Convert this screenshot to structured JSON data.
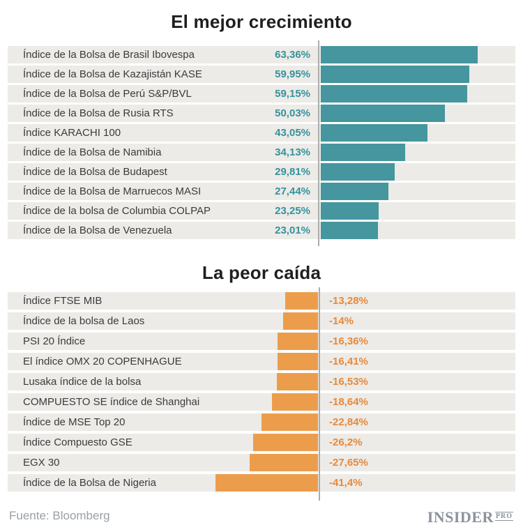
{
  "chart_data": [
    {
      "type": "bar",
      "title": "El mejor crecimiento",
      "orientation": "horizontal",
      "direction": "positive-right-of-axis",
      "bar_color": "#45969E",
      "value_color": "#35929D",
      "row_bg": "#ECEBE7",
      "axis_color": "#ACACAC",
      "xlim": [
        0,
        80
      ],
      "grid": false,
      "legend": "none",
      "rows": [
        {
          "label": "Índice de la Bolsa de Brasil Ibovespa",
          "value": 63.36,
          "value_label": "63,36%"
        },
        {
          "label": "Índice de la Bolsa de Kazajistán KASE",
          "value": 59.95,
          "value_label": "59,95%"
        },
        {
          "label": "Índice de la Bolsa de Perú S&P/BVL",
          "value": 59.15,
          "value_label": "59,15%"
        },
        {
          "label": "Índice de la Bolsa de Rusia RTS",
          "value": 50.03,
          "value_label": "50,03%"
        },
        {
          "label": "Índice KARACHI 100",
          "value": 43.05,
          "value_label": "43,05%"
        },
        {
          "label": "Índice de la Bolsa de Namibia",
          "value": 34.13,
          "value_label": "34,13%"
        },
        {
          "label": "Índice de la Bolsa de Budapest",
          "value": 29.81,
          "value_label": "29,81%"
        },
        {
          "label": "Índice de la Bolsa de Marruecos MASI",
          "value": 27.44,
          "value_label": "27,44%"
        },
        {
          "label": "Índice de la bolsa de Columbia COLPAP",
          "value": 23.25,
          "value_label": "23,25%"
        },
        {
          "label": "Índice de la Bolsa de Venezuela",
          "value": 23.01,
          "value_label": "23,01%"
        }
      ]
    },
    {
      "type": "bar",
      "title": "La peor caída",
      "orientation": "horizontal",
      "direction": "negative-left-of-axis",
      "bar_color": "#EC9D4C",
      "value_color": "#E8883A",
      "row_bg": "#ECEBE7",
      "axis_color": "#ACACAC",
      "xlim": [
        -50,
        0
      ],
      "grid": false,
      "legend": "none",
      "rows": [
        {
          "label": "Índice FTSE MIB",
          "value": -13.28,
          "value_label": "-13,28%"
        },
        {
          "label": "Índice de la bolsa de Laos",
          "value": -14,
          "value_label": "-14%"
        },
        {
          "label": "PSI 20 Índice",
          "value": -16.36,
          "value_label": "-16,36%"
        },
        {
          "label": "El índice OMX 20 COPENHAGUE",
          "value": -16.41,
          "value_label": "-16,41%"
        },
        {
          "label": "Lusaka índice de la bolsa",
          "value": -16.53,
          "value_label": "-16,53%"
        },
        {
          "label": "COMPUESTO SE índice de Shanghai",
          "value": -18.64,
          "value_label": "-18,64%"
        },
        {
          "label": "Índice de MSE Top 20",
          "value": -22.84,
          "value_label": "-22,84%"
        },
        {
          "label": "Índice Compuesto GSE",
          "value": -26.2,
          "value_label": "-26,2%"
        },
        {
          "label": "EGX 30",
          "value": -27.65,
          "value_label": "-27,65%"
        },
        {
          "label": "Índice de la Bolsa de Nigeria",
          "value": -41.4,
          "value_label": "-41,4%"
        }
      ]
    }
  ],
  "footer": {
    "source": "Fuente: Bloomberg",
    "logo_main": "INSIDER",
    "logo_sub": "PRO"
  }
}
